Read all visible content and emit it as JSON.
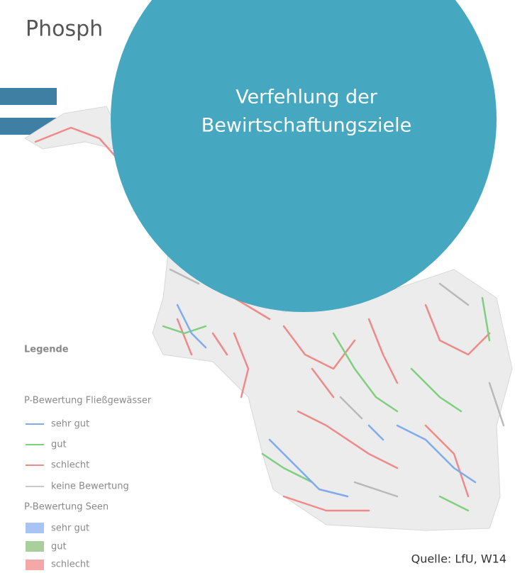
{
  "title": "Phosph",
  "circle_text": [
    "Verfehlung der",
    "Bewirtschaftungsziele"
  ],
  "legend": {
    "title": "Legende",
    "rivers": {
      "heading": "P-Bewertung Fließgewässer",
      "items": [
        "sehr gut",
        "gut",
        "schlecht",
        "keine Bewertung"
      ]
    },
    "lakes": {
      "heading": "P-Bewertung Seen",
      "items": [
        "sehr gut",
        "gut",
        "schlecht"
      ]
    }
  },
  "source": "Quelle: LfU, W14"
}
